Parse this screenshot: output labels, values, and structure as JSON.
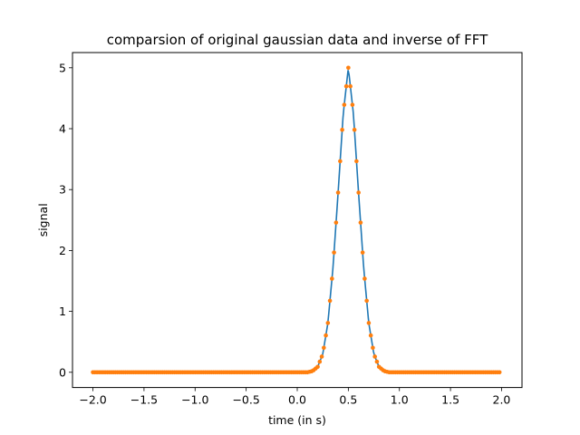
{
  "chart_data": {
    "type": "line",
    "title": "comparsion of original gaussian data and inverse of FFT",
    "xlabel": "time (in s)",
    "ylabel": "signal",
    "xlim": [
      -2.2,
      2.2
    ],
    "ylim": [
      -0.25,
      5.25
    ],
    "xticks": [
      -2.0,
      -1.5,
      -1.0,
      -0.5,
      0.0,
      0.5,
      1.0,
      1.5,
      2.0
    ],
    "xtick_labels": [
      "−2.0",
      "−1.5",
      "−1.0",
      "−0.5",
      "0.0",
      "0.5",
      "1.0",
      "1.5",
      "2.0"
    ],
    "yticks": [
      0,
      1,
      2,
      3,
      4,
      5
    ],
    "ytick_labels": [
      "0",
      "1",
      "2",
      "3",
      "4",
      "5"
    ],
    "grid": false,
    "legend": "none",
    "series": [
      {
        "kind": "line",
        "color": "#1f77b4",
        "x": [
          -2.0,
          -1.5,
          -1.0,
          -0.5,
          0.0,
          0.1,
          0.15,
          0.2,
          0.25,
          0.3,
          0.35,
          0.4,
          0.45,
          0.5,
          0.55,
          0.6,
          0.65,
          0.7,
          0.75,
          0.8,
          0.85,
          0.9,
          1.0,
          1.5,
          1.98
        ],
        "y": [
          0.0,
          0.0,
          0.0,
          0.0,
          0.0,
          0.0,
          0.02,
          0.09,
          0.3,
          0.81,
          1.72,
          2.95,
          4.24,
          5.0,
          4.24,
          2.95,
          1.72,
          0.81,
          0.3,
          0.09,
          0.02,
          0.0,
          0.0,
          0.0,
          0.0
        ]
      },
      {
        "kind": "scatter",
        "color": "#ff7f0e",
        "x": [
          -2.0,
          -1.5,
          -1.0,
          -0.5,
          0.0,
          0.1,
          0.15,
          0.2,
          0.25,
          0.3,
          0.35,
          0.4,
          0.45,
          0.5,
          0.55,
          0.6,
          0.65,
          0.7,
          0.75,
          0.8,
          0.85,
          0.9,
          1.0,
          1.5,
          1.98
        ],
        "y": [
          0.0,
          0.0,
          0.0,
          0.0,
          0.0,
          0.0,
          0.02,
          0.09,
          0.3,
          0.81,
          1.72,
          2.95,
          4.24,
          5.0,
          4.24,
          2.95,
          1.72,
          0.81,
          0.3,
          0.09,
          0.02,
          0.0,
          0.0,
          0.0,
          0.0
        ]
      }
    ]
  }
}
